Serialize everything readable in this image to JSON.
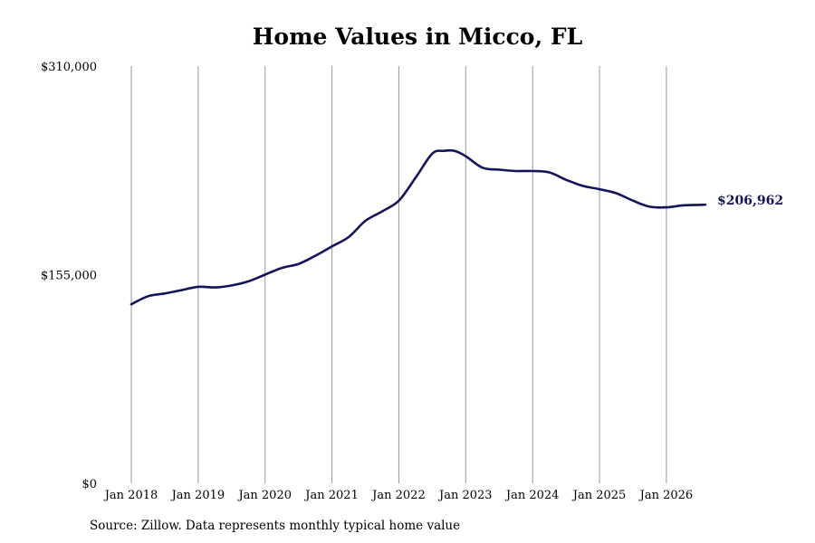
{
  "chart_data": {
    "type": "line",
    "title": "Home Values in Micco, FL",
    "source": "Source: Zillow. Data represents monthly typical home value",
    "xlabel": "",
    "ylabel": "",
    "y_ticks": [
      "$310,000",
      "$155,000",
      "$0"
    ],
    "y_tick_values": [
      310000,
      155000,
      0
    ],
    "ylim": [
      0,
      310000
    ],
    "x_ticks": [
      "Jan 2018",
      "Jan 2019",
      "Jan 2020",
      "Jan 2021",
      "Jan 2022",
      "Jan 2023",
      "Jan 2024",
      "Jan 2025",
      "Jan 2026"
    ],
    "x_tick_values": [
      2018.0,
      2019.0,
      2020.0,
      2021.0,
      2022.0,
      2023.0,
      2024.0,
      2025.0,
      2026.0
    ],
    "xlim": [
      2018.0,
      2026.5833
    ],
    "grid": "vertical",
    "end_label": "$206,962",
    "colors": {
      "line": "#14145a",
      "grid": "#999999",
      "end_label": "#14145a"
    },
    "series": [
      {
        "x": [
          2018.0,
          2018.25,
          2018.5,
          2018.75,
          2019.0,
          2019.25,
          2019.5,
          2019.75,
          2020.0,
          2020.25,
          2020.5,
          2020.75,
          2021.0,
          2021.25,
          2021.5,
          2021.75,
          2022.0,
          2022.25,
          2022.5,
          2022.67,
          2022.83,
          2023.0,
          2023.25,
          2023.5,
          2023.75,
          2024.0,
          2024.25,
          2024.5,
          2024.75,
          2025.0,
          2025.25,
          2025.5,
          2025.75,
          2026.0,
          2026.25,
          2026.5833
        ],
        "values": [
          133000,
          139000,
          141000,
          143500,
          146000,
          145500,
          147000,
          150000,
          155000,
          160000,
          163000,
          169000,
          176000,
          183000,
          195000,
          202000,
          210000,
          227000,
          245000,
          247000,
          247000,
          243000,
          234500,
          233000,
          232000,
          232000,
          231000,
          225500,
          221000,
          218500,
          215500,
          210000,
          205500,
          205000,
          206500,
          206962
        ]
      }
    ]
  }
}
